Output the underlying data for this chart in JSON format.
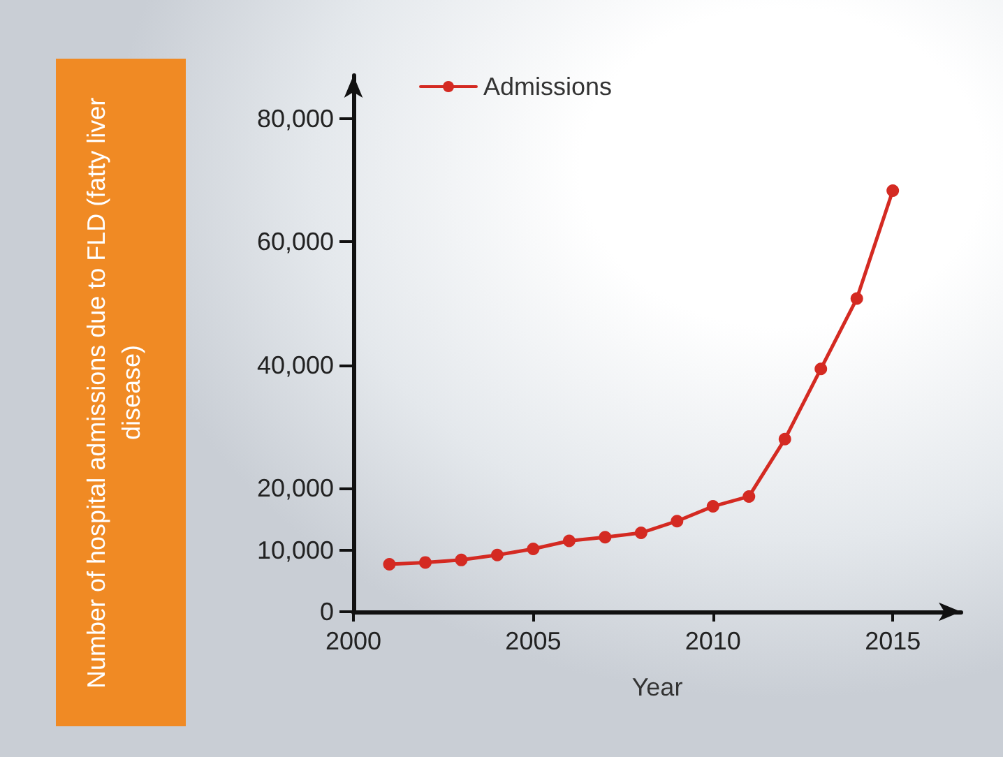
{
  "chart_data": {
    "type": "line",
    "xlabel": "Year",
    "ylabel": "Number of hospital admissions due to FLD (fatty liver disease)",
    "x": [
      2001,
      2002,
      2003,
      2004,
      2005,
      2006,
      2007,
      2008,
      2009,
      2010,
      2011,
      2012,
      2013,
      2014,
      2015
    ],
    "series": [
      {
        "name": "Admissions",
        "color": "#d42a22",
        "values": [
          7700,
          8000,
          8400,
          9200,
          10200,
          11500,
          12100,
          12800,
          14700,
          17100,
          18700,
          28000,
          39400,
          50800,
          68300
        ]
      }
    ],
    "xlim": [
      2000,
      2016.9
    ],
    "xticks": [
      2000,
      2005,
      2010,
      2015
    ],
    "ylim": [
      0,
      87000
    ],
    "yticks": [
      0,
      {
        "value": 10000,
        "label": "10,000"
      },
      {
        "value": 20000,
        "label": "20,000"
      },
      {
        "value": 40000,
        "label": "40,000"
      },
      {
        "value": 60000,
        "label": "60,000"
      },
      {
        "value": 80000,
        "label": "80,000"
      }
    ],
    "grid": false,
    "legend": "top left",
    "marker": "circle",
    "line_style": "solid"
  }
}
